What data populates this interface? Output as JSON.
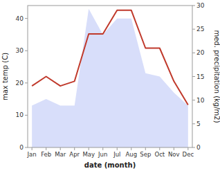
{
  "chart_data": {
    "type": "line",
    "xlabel": "date (month)",
    "ylabel": "max temp (C)",
    "y2label": "med. precipitation (kg/m2)",
    "categories": [
      "Jan",
      "Feb",
      "Mar",
      "Apr",
      "May",
      "Jun",
      "Jul",
      "Aug",
      "Sep",
      "Oct",
      "Nov",
      "Dec"
    ],
    "series": [
      {
        "type": "area",
        "color": "#c8d0f8",
        "values": [
          13,
          15,
          13,
          13,
          43,
          35,
          40,
          40,
          23,
          22,
          17,
          13
        ]
      },
      {
        "type": "line",
        "color": "#c0392b",
        "axis": "y2",
        "values": [
          13,
          15,
          13,
          14,
          24,
          24,
          29,
          29,
          21,
          21,
          14,
          9
        ]
      }
    ],
    "ylim": [
      0,
      44
    ],
    "yticks": [
      0,
      10,
      20,
      30,
      40
    ],
    "y2lim": [
      0,
      30
    ],
    "y2ticks": [
      0,
      5,
      10,
      15,
      20,
      25,
      30
    ],
    "grid": false
  }
}
